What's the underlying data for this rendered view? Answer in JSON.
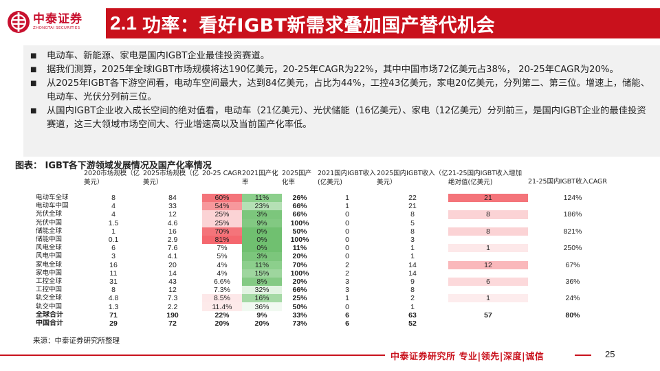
{
  "logo": {
    "cn": "中泰证券",
    "en": "ZHONGTAI SECURITIES"
  },
  "title": {
    "num": "2.1",
    "text": "功率：看好IGBT新需求叠加国产替代机会"
  },
  "bullets": [
    "电动车、新能源、家电是国内IGBT企业最佳投资赛道。",
    "据我们测算，2025年全球IGBT市场规模将达190亿美元，20-25年CAGR为22%，其中中国市场72亿美元占38%，  20-25年CAGR为20%。",
    "从2025年IGBT各下游空间看，电动车空间最大，达到84亿美元，占比为44%，工控43亿美元，家电20亿美元，分列第二、第三位。增速上，储能、电动车、光伏分列前三位。",
    "从国内IGBT企业收入成长空间的绝对值看，电动车（21亿美元）、光伏储能（16亿美元）、家电（12亿美元）分列前三，是国内IGBT企业的最佳投资赛道，这三大领域市场空间大、行业增速高以及当前国产化率低。"
  ],
  "bullet_mark": "■",
  "caption": "图表：  IGBT各下游领域发展情况及国产化率情况",
  "table": {
    "headers": [
      "",
      "2020市场规模（亿美元）",
      "2025市场规模（亿美元）",
      "20-25 CAGR",
      "2021国产化率",
      "2025国产化率",
      "2021国内IGBT收入(亿美元)",
      "2025国内IGBT收入（亿美元）",
      "21-25国内IGBT收入增加绝对值(亿美元)",
      "21-25国内IGBT收入CAGR"
    ],
    "rows": [
      [
        "电动车全球",
        "8",
        "84",
        "60%",
        "11%",
        "26%",
        "1",
        "22",
        "21",
        "124%"
      ],
      [
        "电动车中国",
        "4",
        "33",
        "54%",
        "23%",
        "66%",
        "1",
        "21",
        "",
        ""
      ],
      [
        "光伏全球",
        "4",
        "12",
        "25%",
        "3%",
        "66%",
        "0",
        "8",
        "8",
        "186%"
      ],
      [
        "光伏中国",
        "1.5",
        "4.6",
        "25%",
        "9%",
        "100%",
        "0",
        "5",
        "",
        ""
      ],
      [
        "储能全球",
        "1",
        "16",
        "70%",
        "0%",
        "50%",
        "0",
        "8",
        "8",
        "821%"
      ],
      [
        "储能中国",
        "0.1",
        "2.9",
        "81%",
        "0%",
        "100%",
        "0",
        "3",
        "",
        ""
      ],
      [
        "风电全球",
        "6",
        "7.6",
        "7%",
        "0%",
        "11%",
        "0",
        "1",
        "1",
        "250%"
      ],
      [
        "风电中国",
        "3",
        "4.1",
        "5%",
        "3%",
        "20%",
        "0",
        "1",
        "",
        ""
      ],
      [
        "家电全球",
        "16",
        "20",
        "4%",
        "11%",
        "70%",
        "2",
        "14",
        "12",
        "67%"
      ],
      [
        "家电中国",
        "11",
        "14",
        "4%",
        "15%",
        "100%",
        "2",
        "14",
        "",
        ""
      ],
      [
        "工控全球",
        "31",
        "43",
        "6.6%",
        "8%",
        "20%",
        "3",
        "9",
        "6",
        "36%"
      ],
      [
        "工控中国",
        "8",
        "12",
        "7.3%",
        "32%",
        "66%",
        "3",
        "8",
        "",
        ""
      ],
      [
        "轨交全球",
        "4.8",
        "7.3",
        "8.5%",
        "16%",
        "25%",
        "1",
        "2",
        "1",
        "24%"
      ],
      [
        "轨交中国",
        "1.3",
        "2.2",
        "11.4%",
        "36%",
        "50%",
        "0",
        "1",
        "",
        ""
      ],
      [
        "全球合计",
        "71",
        "190",
        "22%",
        "9%",
        "33%",
        "6",
        "63",
        "57",
        "80%"
      ],
      [
        "中国合计",
        "29",
        "72",
        "20%",
        "20%",
        "73%",
        "6",
        "52",
        "",
        ""
      ]
    ],
    "colors": {
      "cagr": [
        "#f4747a",
        "#f7989c",
        "#fbd3d5",
        "#fbd3d5",
        "#f4747a",
        "#f4676e",
        "",
        "",
        "",
        "",
        "",
        "",
        "#fde8e9",
        "#fdeaea",
        "",
        ""
      ],
      "rate2021": [
        "#8ccf8c",
        "#b5e0b5",
        "#7cc67c",
        "#82c982",
        "#70c070",
        "#70c070",
        "#70c070",
        "#7cc67c",
        "#8ccf8c",
        "#9ed69e",
        "#84ca84",
        "#e2f3e2",
        "#a5d9a5",
        "#f1f9f1",
        "",
        ""
      ],
      "incr": [
        "#f4747a",
        "",
        "#fbd3d5",
        "",
        "#fbd3d5",
        "",
        "#fde8e9",
        "",
        "#fab8bb",
        "",
        "#fcd9db",
        "",
        "#fdeced",
        "",
        "",
        ""
      ]
    }
  },
  "source": "来源：中泰证券研究所整理",
  "footer": {
    "text": "中泰证券研究所 专业|领先|深度|诚信",
    "page": "25"
  }
}
